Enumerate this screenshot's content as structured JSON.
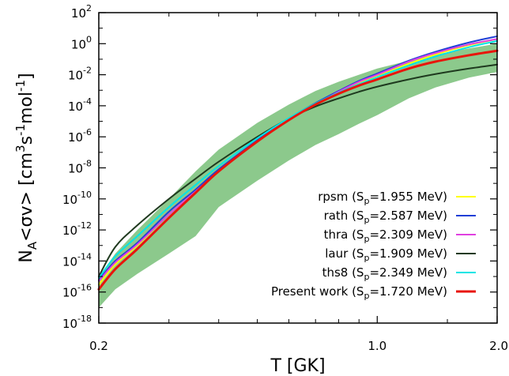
{
  "chart_data": {
    "type": "line",
    "xlabel": "T [GK]",
    "ylabel": "N_A<σv> [cm^3s^-1mol^-1]",
    "x_scale": "log",
    "y_scale": "log",
    "xlim": [
      0.2,
      2.0
    ],
    "ylim": [
      1e-18,
      100
    ],
    "x_ticks": [
      {
        "value": 0.2,
        "label": "0.2"
      },
      {
        "value": 1.0,
        "label": "1.0"
      },
      {
        "value": 2.0,
        "label": "2.0"
      }
    ],
    "y_ticks": [
      {
        "value": 100.0,
        "base": "10",
        "exp": "2"
      },
      {
        "value": 1.0,
        "base": "10",
        "exp": "0"
      },
      {
        "value": 0.01,
        "base": "10",
        "exp": "-2"
      },
      {
        "value": 0.0001,
        "base": "10",
        "exp": "-4"
      },
      {
        "value": 1e-06,
        "base": "10",
        "exp": "-6"
      },
      {
        "value": 1e-08,
        "base": "10",
        "exp": "-8"
      },
      {
        "value": 1e-10,
        "base": "10",
        "exp": "-10"
      },
      {
        "value": 1e-12,
        "base": "10",
        "exp": "-12"
      },
      {
        "value": 1e-14,
        "base": "10",
        "exp": "-14"
      },
      {
        "value": 1e-16,
        "base": "10",
        "exp": "-16"
      },
      {
        "value": 1e-18,
        "base": "10",
        "exp": "-18"
      }
    ],
    "legend_position": "bottom-right",
    "uncertainty_band": {
      "color": "#8cc98c",
      "x": [
        0.2,
        0.22,
        0.25,
        0.3,
        0.35,
        0.4,
        0.5,
        0.6,
        0.7,
        0.8,
        0.9,
        1.0,
        1.2,
        1.4,
        1.7,
        2.0
      ],
      "upper": [
        9e-16,
        3e-14,
        1e-12,
        1e-10,
        6e-09,
        1.5e-07,
        8e-06,
        0.00012,
        0.0009,
        0.0035,
        0.01,
        0.025,
        0.08,
        0.2,
        0.5,
        1.0
      ],
      "lower": [
        1e-17,
        1.5e-16,
        1.5e-15,
        3e-14,
        4e-13,
        3e-11,
        1.5e-09,
        3e-08,
        3e-07,
        1.5e-06,
        7e-06,
        2.5e-05,
        0.0003,
        0.0015,
        0.0065,
        0.015
      ]
    },
    "series": [
      {
        "name": "rpsm",
        "legend_sp": "1.955",
        "color": "#ffff00",
        "width": 2,
        "x": [
          0.2,
          0.22,
          0.25,
          0.3,
          0.35,
          0.4,
          0.5,
          0.6,
          0.7,
          0.8,
          0.9,
          1.0,
          1.2,
          1.4,
          1.7,
          2.0
        ],
        "y": [
          3e-16,
          6e-15,
          1e-13,
          1e-11,
          3e-10,
          6e-09,
          5e-07,
          1.2e-05,
          0.00012,
          0.0007,
          0.003,
          0.008,
          0.05,
          0.2,
          0.8,
          2.0
        ]
      },
      {
        "name": "rath",
        "legend_sp": "2.587",
        "color": "#1f3fd6",
        "width": 2,
        "x": [
          0.2,
          0.22,
          0.25,
          0.3,
          0.35,
          0.4,
          0.5,
          0.6,
          0.7,
          0.8,
          0.9,
          1.0,
          1.2,
          1.4,
          1.7,
          2.0
        ],
        "y": [
          6e-16,
          1e-14,
          1.5e-13,
          1.5e-11,
          4e-10,
          8e-09,
          6e-07,
          1.5e-05,
          0.00015,
          0.0009,
          0.004,
          0.012,
          0.08,
          0.3,
          1.2,
          3.0
        ]
      },
      {
        "name": "thra",
        "legend_sp": "2.309",
        "color": "#e040e0",
        "width": 2,
        "x": [
          0.2,
          0.22,
          0.25,
          0.3,
          0.35,
          0.4,
          0.5,
          0.6,
          0.7,
          0.8,
          0.9,
          1.0,
          1.2,
          1.4,
          1.7,
          2.0
        ],
        "y": [
          5e-16,
          8e-15,
          1.2e-13,
          1e-11,
          3e-10,
          6e-09,
          5e-07,
          1.2e-05,
          0.00012,
          0.0008,
          0.0035,
          0.01,
          0.07,
          0.25,
          0.9,
          2.0
        ]
      },
      {
        "name": "laur",
        "legend_sp": "1.909",
        "color": "#1f3a1f",
        "width": 2,
        "x": [
          0.2,
          0.22,
          0.25,
          0.3,
          0.35,
          0.4,
          0.5,
          0.6,
          0.7,
          0.8,
          0.9,
          1.0,
          1.2,
          1.4,
          1.7,
          2.0
        ],
        "y": [
          1e-15,
          8e-14,
          2e-12,
          1e-10,
          2e-09,
          2.5e-08,
          1e-06,
          1.5e-05,
          9e-05,
          0.0003,
          0.0008,
          0.0017,
          0.005,
          0.011,
          0.025,
          0.045
        ]
      },
      {
        "name": "ths8",
        "legend_sp": "2.349",
        "color": "#00e5e5",
        "width": 2,
        "x": [
          0.2,
          0.22,
          0.25,
          0.3,
          0.35,
          0.4,
          0.5,
          0.6,
          0.7,
          0.8,
          0.9,
          1.0,
          1.2,
          1.4,
          1.7,
          2.0
        ],
        "y": [
          8e-16,
          2e-14,
          4e-13,
          3e-11,
          8e-10,
          1.3e-08,
          8e-07,
          1.6e-05,
          0.00014,
          0.0007,
          0.0025,
          0.007,
          0.04,
          0.15,
          0.6,
          1.5
        ]
      },
      {
        "name": "Present work",
        "legend_sp": "1.720",
        "color": "#e8160c",
        "width": 3,
        "x": [
          0.2,
          0.22,
          0.25,
          0.3,
          0.35,
          0.4,
          0.5,
          0.6,
          0.7,
          0.8,
          0.9,
          1.0,
          1.2,
          1.4,
          1.7,
          2.0
        ],
        "y": [
          1.5e-16,
          3e-15,
          6e-14,
          6e-12,
          2.5e-10,
          6e-09,
          5e-07,
          1.2e-05,
          0.00012,
          0.0006,
          0.002,
          0.005,
          0.025,
          0.07,
          0.18,
          0.35
        ]
      }
    ]
  }
}
